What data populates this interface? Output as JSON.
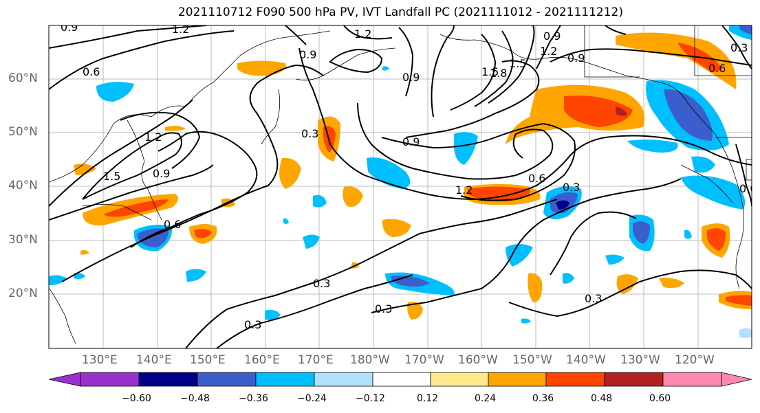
{
  "title": "2021110712 F090 500 hPa PV, IVT Landfall PC (2021111012 - 2021111212)",
  "map": {
    "lat_labels": [
      "60°N",
      "50°N",
      "40°N",
      "30°N",
      "20°N"
    ],
    "lon_labels": [
      "130°E",
      "140°E",
      "150°E",
      "160°E",
      "170°E",
      "180°W",
      "170°W",
      "160°W",
      "150°W",
      "140°W",
      "130°W",
      "120°W"
    ],
    "contour_labels": [
      "0.9",
      "1.2",
      "0.6",
      "0.9",
      "1.2",
      "0.9",
      "1.5",
      "1.2",
      "0.9",
      "1.5",
      "1.8",
      "0.9",
      "0.6",
      "0.3",
      "1.2",
      "1.5",
      "0.9",
      "0.6",
      "0.3",
      "0.9",
      "1.2",
      "0.3",
      "0.3",
      "0.3",
      "0.3",
      "0.6",
      "0.3",
      "0.6"
    ]
  },
  "colorbar": {
    "colors": [
      "#9932cc",
      "#00008b",
      "#3a5fcd",
      "#00bfff",
      "#b0e2ff",
      "#ffffff",
      "#ffe98a",
      "#ffa500",
      "#ff4500",
      "#b22222",
      "#ff88b0"
    ],
    "tick_labels": [
      "−0.60",
      "−0.48",
      "−0.36",
      "−0.24",
      "−0.12",
      "0.12",
      "0.24",
      "0.36",
      "0.48",
      "0.60"
    ]
  }
}
